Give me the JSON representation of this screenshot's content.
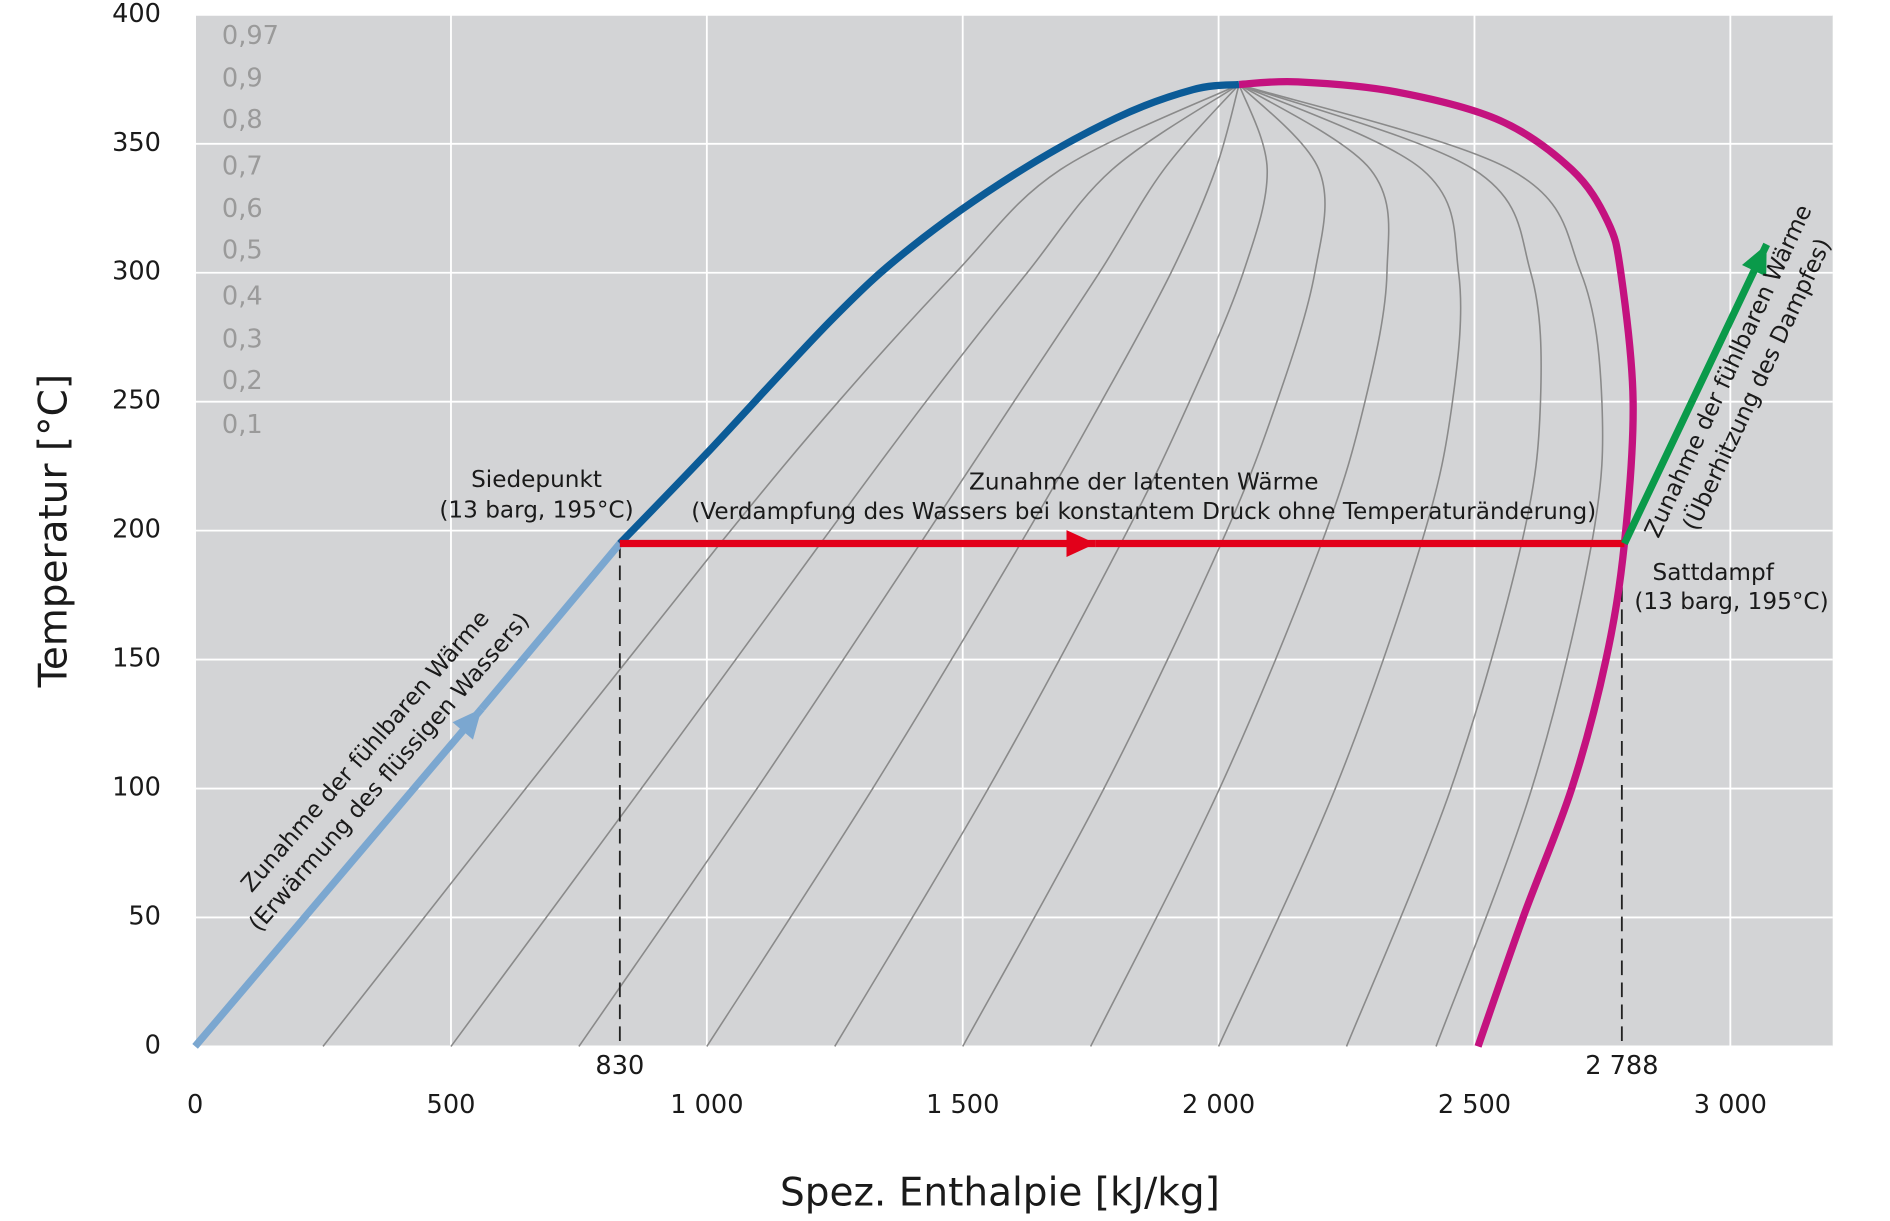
{
  "chart_data": {
    "type": "line",
    "xlabel": "Spez. Enthalpie [kJ/kg]",
    "ylabel": "Temperatur [°C]",
    "xlim": [
      0,
      3200
    ],
    "ylim": [
      0,
      400
    ],
    "xticks": [
      0,
      500,
      {
        "value": 1000,
        "label": "1 000"
      },
      {
        "value": 1500,
        "label": "1 500"
      },
      {
        "value": 2000,
        "label": "2 000"
      },
      {
        "value": 2500,
        "label": "2 500"
      },
      {
        "value": 3000,
        "label": "3 000"
      }
    ],
    "yticks": [
      0,
      50,
      100,
      150,
      200,
      250,
      300,
      350,
      400
    ],
    "marker_ticks": [
      830,
      {
        "value": 2788,
        "label": "2 788"
      }
    ],
    "marker_level": 195,
    "grid": true,
    "quality_labels": [
      "0,97",
      "0,9",
      "0,8",
      "0,7",
      "0,6",
      "0,5",
      "0,4",
      "0,3",
      "0,2",
      "0,1"
    ],
    "annotations": [
      "Siedepunkt",
      "(13 barg, 195°C)",
      "Zunahme der latenten Wärme",
      "(Verdampfung des Wassers bei konstantem Druck ohne Temperaturänderung)",
      "Sattdampf",
      "(13 barg, 195°C)",
      "Zunahme der fühlbaren Wärme",
      "(Erwärmung des flüssigen Wassers)",
      "Zunahme der fühlbaren Wärme",
      "(Überhitzung des Dampfes)"
    ],
    "quality_color": "#8a8a8a",
    "quality_lines": [
      {
        "x": [
          250,
          646,
          1026,
          1257,
          1486,
          1691,
          2040
        ],
        "values": [
          0,
          100,
          195,
          250,
          300,
          340,
          373
        ]
      },
      {
        "x": [
          500,
          872,
          1222,
          1428,
          1626,
          1792,
          2040
        ],
        "values": [
          0,
          100,
          195,
          250,
          300,
          340,
          373
        ]
      },
      {
        "x": [
          750,
          1098,
          1417,
          1600,
          1767,
          1893,
          2040
        ],
        "values": [
          0,
          100,
          195,
          250,
          300,
          340,
          373
        ]
      },
      {
        "x": [
          1000,
          1324,
          1613,
          1771,
          1907,
          1994,
          2040
        ],
        "values": [
          0,
          100,
          195,
          250,
          300,
          340,
          373
        ]
      },
      {
        "x": [
          1250,
          1550,
          1809,
          1943,
          2048,
          2095,
          2040
        ],
        "values": [
          0,
          100,
          195,
          250,
          300,
          340,
          373
        ]
      },
      {
        "x": [
          1500,
          1776,
          2005,
          2114,
          2188,
          2196,
          2040
        ],
        "values": [
          0,
          100,
          195,
          250,
          300,
          340,
          373
        ]
      },
      {
        "x": [
          1750,
          2002,
          2201,
          2286,
          2329,
          2297,
          2040
        ],
        "values": [
          0,
          100,
          195,
          250,
          300,
          340,
          373
        ]
      },
      {
        "x": [
          2000,
          2228,
          2396,
          2457,
          2469,
          2398,
          2040
        ],
        "values": [
          0,
          100,
          195,
          250,
          300,
          340,
          373
        ]
      },
      {
        "x": [
          2250,
          2454,
          2592,
          2629,
          2610,
          2499,
          2040
        ],
        "values": [
          0,
          100,
          195,
          250,
          300,
          340,
          373
        ]
      },
      {
        "x": [
          2425,
          2612,
          2729,
          2749,
          2708,
          2570,
          2040
        ],
        "values": [
          0,
          100,
          195,
          250,
          300,
          340,
          373
        ]
      }
    ],
    "series": [
      {
        "color": "#7ba7d0",
        "x": [
          0,
          560
        ],
        "values": [
          0,
          131
        ],
        "arrow": "end"
      },
      {
        "color": "#7ba7d0",
        "x": [
          560,
          830
        ],
        "values": [
          131,
          195
        ]
      },
      {
        "color": "#0b5b97",
        "x": [
          830,
          1000,
          1245,
          1400,
          1600,
          1800,
          1950,
          2040
        ],
        "values": [
          195,
          230,
          282,
          310,
          338,
          360,
          371,
          373
        ]
      },
      {
        "color": "#c4127f",
        "x": [
          2040,
          2155,
          2350,
          2550,
          2690,
          2760,
          2786,
          2810,
          2793,
          2757,
          2690,
          2595,
          2507
        ],
        "values": [
          373,
          374,
          370,
          359,
          340,
          320,
          300,
          250,
          195,
          150,
          100,
          50,
          0
        ]
      },
      {
        "color": "#e2001a",
        "x": [
          830,
          1760
        ],
        "values": [
          195,
          195
        ],
        "arrow": "end"
      },
      {
        "color": "#e2001a",
        "x": [
          1760,
          2793
        ],
        "values": [
          195,
          195
        ]
      },
      {
        "color": "#0a9a4a",
        "x": [
          2793,
          3071
        ],
        "values": [
          195,
          311
        ],
        "arrow": "end"
      }
    ]
  }
}
